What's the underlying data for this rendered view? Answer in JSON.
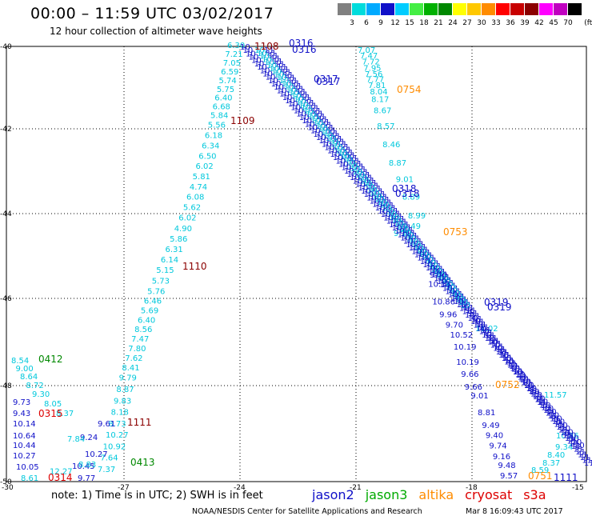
{
  "header": {
    "title": "00:00 – 11:59 UTC 03/02/2017",
    "subtitle": "12 hour collection of altimeter wave heights"
  },
  "scale": {
    "unit": "(ft)",
    "swatches": [
      {
        "label": "",
        "color": "#808080"
      },
      {
        "label": "3",
        "color": "#00dcdc"
      },
      {
        "label": "6",
        "color": "#00aaff"
      },
      {
        "label": "9",
        "color": "#1010c8"
      },
      {
        "label": "12",
        "color": "#00ccff"
      },
      {
        "label": "15",
        "color": "#44ee44"
      },
      {
        "label": "18",
        "color": "#00b000"
      },
      {
        "label": "21",
        "color": "#008800"
      },
      {
        "label": "24",
        "color": "#ffff00"
      },
      {
        "label": "27",
        "color": "#ffc800"
      },
      {
        "label": "30",
        "color": "#ff8c00"
      },
      {
        "label": "33",
        "color": "#ff0000"
      },
      {
        "label": "36",
        "color": "#c80000"
      },
      {
        "label": "39",
        "color": "#8b0000"
      },
      {
        "label": "42",
        "color": "#ff00ff"
      },
      {
        "label": "45",
        "color": "#c000c0"
      },
      {
        "label": "70",
        "color": "#000000"
      }
    ]
  },
  "map": {
    "x_ticks": [
      "-30",
      "-27",
      "-24",
      "-21",
      "-18",
      "-15"
    ],
    "y_ticks": [
      "-40",
      "-42",
      "-44",
      "-46",
      "-48",
      "-50"
    ],
    "track_a": {
      "color": "#00c8dc",
      "values": [
        "6.30",
        "7.21",
        "7.05",
        "6.59",
        "5.74",
        "5.75",
        "6.40",
        "6.68",
        "5.84",
        "5.56",
        "6.18",
        "6.34",
        "6.50",
        "6.02",
        "5.81",
        "4.74",
        "6.08",
        "5.62",
        "6.02",
        "4.90",
        "5.86",
        "6.31",
        "6.14",
        "5.15",
        "5.73",
        "5.76",
        "6.46",
        "5.69",
        "6.40",
        "8.56",
        "7.47",
        "7.80",
        "7.62",
        "8.41",
        "9.79",
        "8.87",
        "9.83",
        "8.18",
        "8.73",
        "10.27",
        "10.92",
        "7.64",
        "7.37"
      ]
    },
    "track_b": {
      "color": "#1010c8",
      "values": [
        "9.61",
        "9.24",
        "10.27",
        "10.45",
        "9.77"
      ]
    },
    "track_c": {
      "color": "#00c8dc",
      "values": [
        "8.54",
        "9.00",
        "8.64",
        "8.72",
        "9.30",
        "8.05",
        "8.37",
        "7.84",
        "8.83",
        "12.27",
        "8.61"
      ]
    },
    "track_d": {
      "color": "#1010c8",
      "values": [
        "9.73",
        "9.43",
        "10.14",
        "10.64",
        "10.44",
        "10.27",
        "10.05"
      ]
    },
    "track_e": {
      "color": "#00c8dc",
      "values": [
        "7.07",
        "7.47",
        "7.72",
        "7.95",
        "7.56",
        "7.77",
        "7.81",
        "8.04",
        "8.17",
        "8.67",
        "8.57",
        "8.46",
        "8.87",
        "9.01",
        "8.89",
        "8.99",
        "9.49",
        "9.20"
      ]
    },
    "track_f": {
      "color": "#1010c8",
      "values": [
        "9.70",
        "10.13",
        "10.86",
        "9.96",
        "9.70",
        "10.52",
        "10.19",
        "10.19",
        "9.66",
        "9.66",
        "9.01",
        "8.81",
        "9.49",
        "9.40",
        "9.74",
        "9.16",
        "9.48",
        "9.57"
      ]
    },
    "track_g": {
      "color": "#00c8dc",
      "values": [
        "8.40",
        "8.37",
        "8.59"
      ]
    },
    "track_h": {
      "color": "#00c8dc",
      "values": [
        "11.02",
        "11.57",
        "10.86",
        "9.34"
      ]
    },
    "labels": [
      {
        "text": "1108",
        "color": "#8b0000"
      },
      {
        "text": "0316",
        "color": "#1010c8"
      },
      {
        "text": "0317",
        "color": "#1010c8"
      },
      {
        "text": "0754",
        "color": "#ff8c00"
      },
      {
        "text": "1109",
        "color": "#8b0000"
      },
      {
        "text": "0318",
        "color": "#1010c8"
      },
      {
        "text": "0753",
        "color": "#ff8c00"
      },
      {
        "text": "1110",
        "color": "#8b0000"
      },
      {
        "text": "0319",
        "color": "#1010c8"
      },
      {
        "text": "0752",
        "color": "#ff8c00"
      },
      {
        "text": "0412",
        "color": "#008800"
      },
      {
        "text": "0315",
        "color": "#dd0000"
      },
      {
        "text": "1111",
        "color": "#8b0000"
      },
      {
        "text": "0413",
        "color": "#008800"
      },
      {
        "text": "0314",
        "color": "#dd0000"
      },
      {
        "text": "0751",
        "color": "#ff8c00"
      },
      {
        "text": "1111",
        "color": "#1010c8"
      }
    ],
    "tracks_dense": [
      {
        "color": "#1010c8",
        "value": "11"
      },
      {
        "color": "#1010c8",
        "value": "10"
      }
    ]
  },
  "footer": {
    "note": "note:  1) Time is in UTC;  2) SWH is in feet",
    "legend": [
      {
        "name": "jason2",
        "color": "#1010c8"
      },
      {
        "name": "jason3",
        "color": "#00aa00"
      },
      {
        "name": "altika",
        "color": "#ff8c00"
      },
      {
        "name": "cryosat",
        "color": "#dd0000"
      },
      {
        "name": "s3a",
        "color": "#dd0000"
      }
    ],
    "credit": "NOAA/NESDIS Center for Satellite Applications and Research",
    "timestamp": "Mar  8 16:09:43 UTC 2017"
  }
}
